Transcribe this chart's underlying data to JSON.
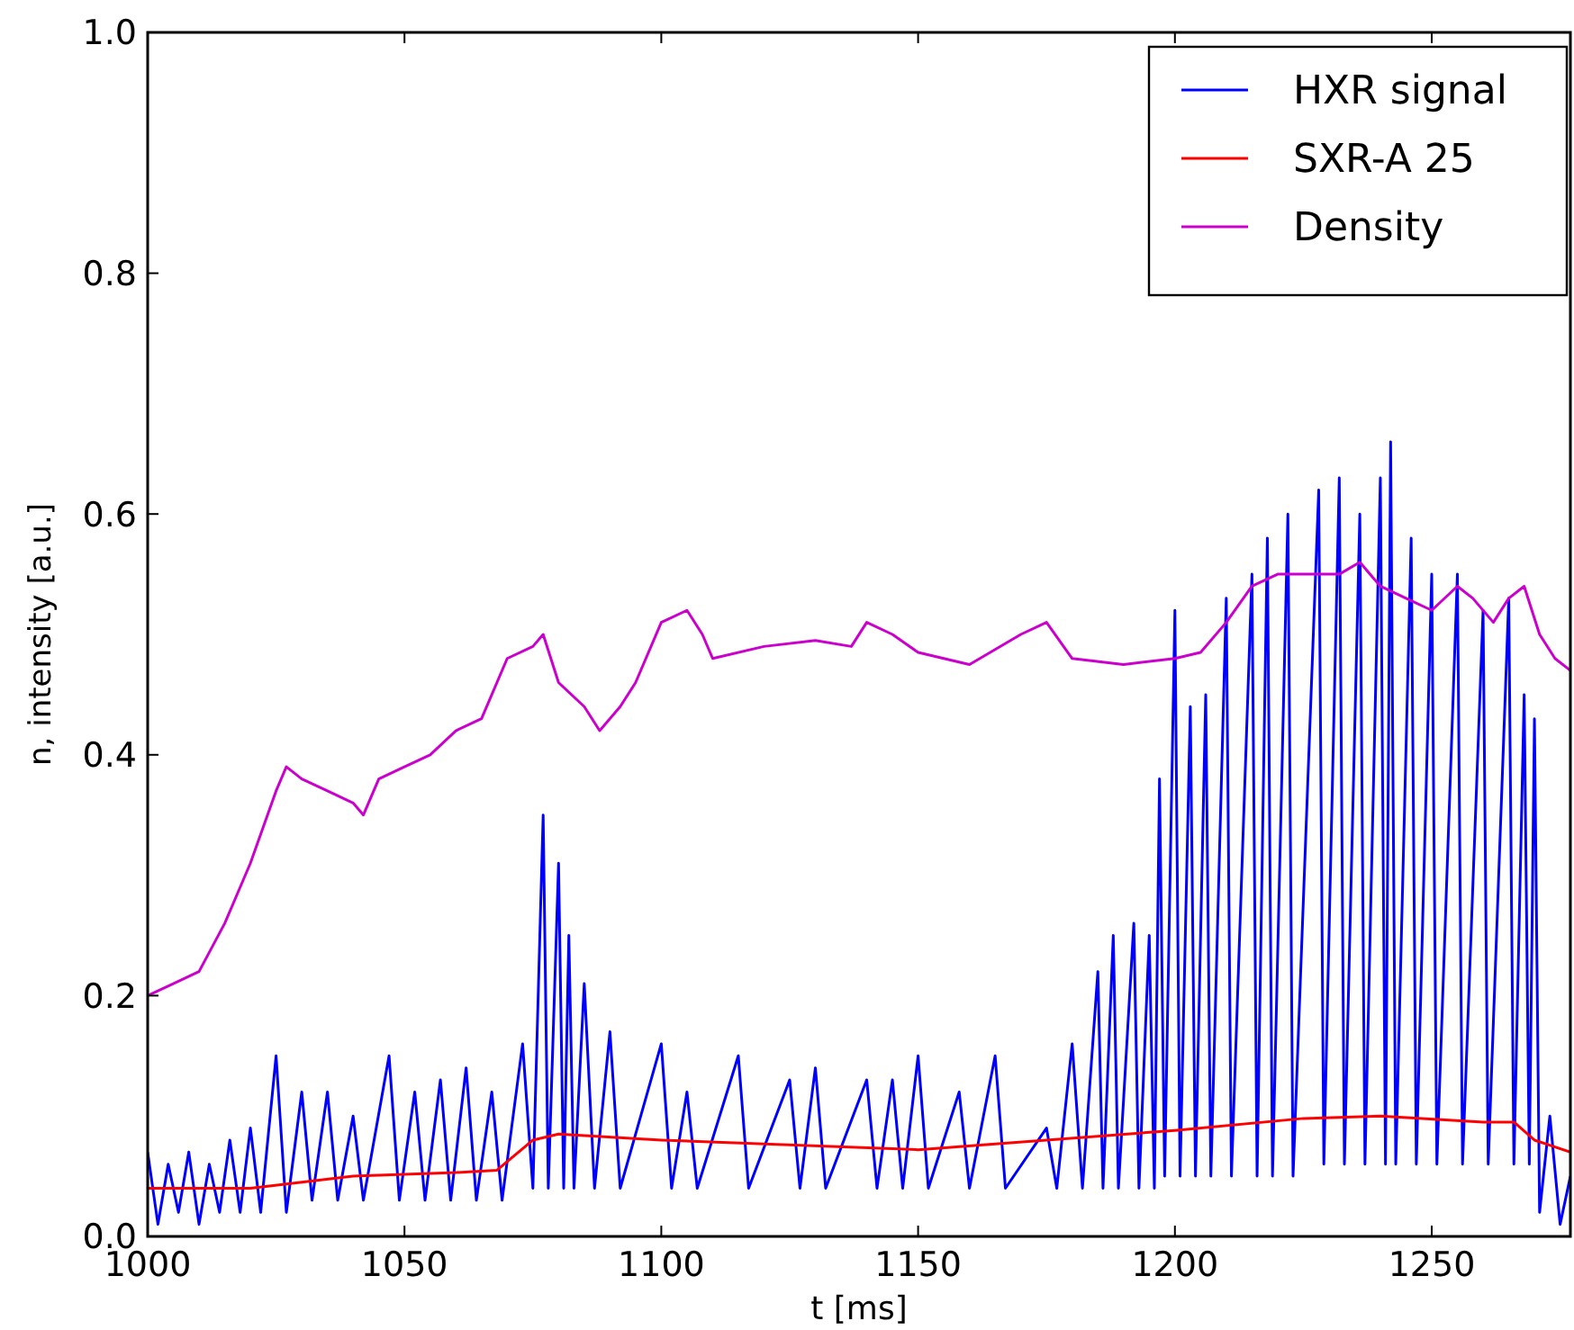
{
  "chart_data": {
    "type": "line",
    "xlabel": "t [ms]",
    "ylabel": "n, intensity [a.u.]",
    "xlim": [
      1000,
      1277
    ],
    "ylim": [
      0,
      1.0
    ],
    "xticks": [
      1000,
      1050,
      1100,
      1150,
      1200,
      1250
    ],
    "yticks": [
      {
        "value": 0,
        "label": "0.0"
      },
      0.2,
      0.4,
      0.6,
      0.8,
      {
        "value": 1,
        "label": "1.0"
      }
    ],
    "grid": false,
    "legend": "top right",
    "marker": "none",
    "line_style": "solid",
    "series": [
      {
        "name": "HXR signal",
        "color": "#0000ff",
        "x": [
          1000,
          1002,
          1004,
          1006,
          1008,
          1010,
          1012,
          1014,
          1016,
          1018,
          1020,
          1022,
          1025,
          1027,
          1030,
          1032,
          1035,
          1037,
          1040,
          1042,
          1047,
          1049,
          1052,
          1054,
          1057,
          1059,
          1062,
          1064,
          1067,
          1069,
          1073,
          1075,
          1077,
          1078,
          1080,
          1081,
          1082,
          1083,
          1085,
          1087,
          1090,
          1092,
          1100,
          1102,
          1105,
          1107,
          1115,
          1117,
          1125,
          1127,
          1130,
          1132,
          1140,
          1142,
          1145,
          1147,
          1150,
          1152,
          1158,
          1160,
          1165,
          1167,
          1175,
          1177,
          1180,
          1182,
          1185,
          1186,
          1188,
          1189,
          1192,
          1193,
          1195,
          1196,
          1197,
          1198,
          1200,
          1201,
          1203,
          1204,
          1206,
          1207,
          1210,
          1211,
          1215,
          1216,
          1218,
          1219,
          1222,
          1223,
          1228,
          1229,
          1232,
          1233,
          1236,
          1237,
          1240,
          1241,
          1242,
          1243,
          1246,
          1247,
          1250,
          1251,
          1255,
          1256,
          1260,
          1261,
          1265,
          1266,
          1268,
          1269,
          1270,
          1271,
          1273,
          1275,
          1277
        ],
        "values": [
          0.07,
          0.01,
          0.06,
          0.02,
          0.07,
          0.01,
          0.06,
          0.02,
          0.08,
          0.02,
          0.09,
          0.02,
          0.15,
          0.02,
          0.12,
          0.03,
          0.12,
          0.03,
          0.1,
          0.03,
          0.15,
          0.03,
          0.12,
          0.03,
          0.13,
          0.03,
          0.14,
          0.03,
          0.12,
          0.03,
          0.16,
          0.04,
          0.35,
          0.04,
          0.31,
          0.04,
          0.25,
          0.04,
          0.21,
          0.04,
          0.17,
          0.04,
          0.16,
          0.04,
          0.12,
          0.04,
          0.15,
          0.04,
          0.13,
          0.04,
          0.14,
          0.04,
          0.13,
          0.04,
          0.13,
          0.04,
          0.15,
          0.04,
          0.12,
          0.04,
          0.15,
          0.04,
          0.09,
          0.04,
          0.16,
          0.04,
          0.22,
          0.04,
          0.25,
          0.04,
          0.26,
          0.04,
          0.25,
          0.04,
          0.38,
          0.05,
          0.52,
          0.05,
          0.44,
          0.05,
          0.45,
          0.05,
          0.53,
          0.05,
          0.55,
          0.05,
          0.58,
          0.05,
          0.6,
          0.05,
          0.62,
          0.06,
          0.63,
          0.06,
          0.6,
          0.06,
          0.63,
          0.06,
          0.66,
          0.06,
          0.58,
          0.06,
          0.55,
          0.06,
          0.55,
          0.06,
          0.52,
          0.06,
          0.53,
          0.06,
          0.45,
          0.06,
          0.43,
          0.02,
          0.1,
          0.01,
          0.05
        ]
      },
      {
        "name": "SXR-A 25",
        "color": "#ff0000",
        "x": [
          1000,
          1020,
          1040,
          1060,
          1068,
          1075,
          1080,
          1100,
          1150,
          1175,
          1200,
          1225,
          1240,
          1260,
          1266,
          1270,
          1277
        ],
        "values": [
          0.04,
          0.04,
          0.05,
          0.053,
          0.055,
          0.08,
          0.085,
          0.08,
          0.072,
          0.08,
          0.088,
          0.098,
          0.1,
          0.095,
          0.095,
          0.08,
          0.07
        ]
      },
      {
        "name": "Density",
        "color": "#cc00cc",
        "x": [
          1000,
          1005,
          1010,
          1015,
          1020,
          1025,
          1027,
          1030,
          1035,
          1040,
          1042,
          1045,
          1050,
          1055,
          1060,
          1065,
          1070,
          1075,
          1077,
          1080,
          1085,
          1088,
          1092,
          1095,
          1100,
          1105,
          1108,
          1110,
          1120,
          1130,
          1137,
          1140,
          1145,
          1150,
          1160,
          1170,
          1175,
          1180,
          1190,
          1200,
          1205,
          1210,
          1215,
          1220,
          1225,
          1232,
          1236,
          1240,
          1245,
          1250,
          1255,
          1258,
          1262,
          1265,
          1268,
          1271,
          1274,
          1277
        ],
        "values": [
          0.2,
          0.21,
          0.22,
          0.26,
          0.31,
          0.37,
          0.39,
          0.38,
          0.37,
          0.36,
          0.35,
          0.38,
          0.39,
          0.4,
          0.42,
          0.43,
          0.48,
          0.49,
          0.5,
          0.46,
          0.44,
          0.42,
          0.44,
          0.46,
          0.51,
          0.52,
          0.5,
          0.48,
          0.49,
          0.495,
          0.49,
          0.51,
          0.5,
          0.485,
          0.475,
          0.5,
          0.51,
          0.48,
          0.475,
          0.48,
          0.485,
          0.51,
          0.54,
          0.55,
          0.55,
          0.55,
          0.56,
          0.54,
          0.53,
          0.52,
          0.54,
          0.53,
          0.51,
          0.53,
          0.54,
          0.5,
          0.48,
          0.47
        ]
      }
    ]
  }
}
